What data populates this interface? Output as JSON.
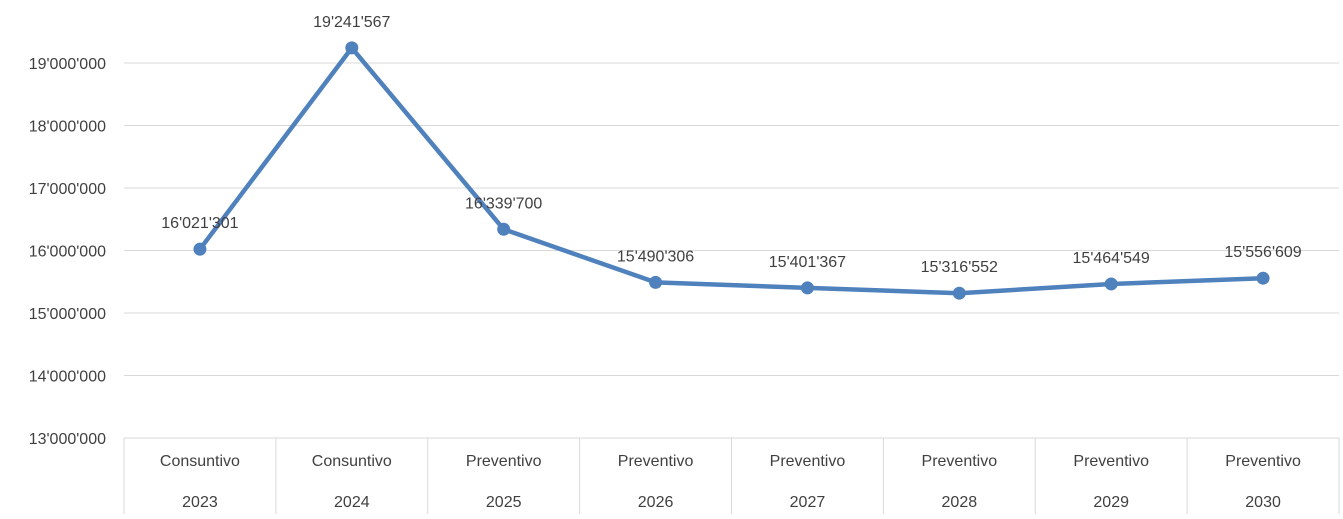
{
  "chart_data": {
    "type": "line",
    "categories": [
      [
        "Consuntivo",
        "2023"
      ],
      [
        "Consuntivo",
        "2024"
      ],
      [
        "Preventivo",
        "2025"
      ],
      [
        "Preventivo",
        "2026"
      ],
      [
        "Preventivo",
        "2027"
      ],
      [
        "Preventivo",
        "2028"
      ],
      [
        "Preventivo",
        "2029"
      ],
      [
        "Preventivo",
        "2030"
      ]
    ],
    "series": [
      {
        "values": [
          16021301,
          19241567,
          16339700,
          15490306,
          15401367,
          15316552,
          15464549,
          15556609
        ],
        "data_labels": [
          "16'021'301",
          "19'241'567",
          "16'339'700",
          "15'490'306",
          "15'401'367",
          "15'316'552",
          "15'464'549",
          "15'556'609"
        ],
        "color": "#4f81bd"
      }
    ],
    "ylim": [
      13000000,
      19000000
    ],
    "yticks": [
      13000000,
      14000000,
      15000000,
      16000000,
      17000000,
      18000000,
      19000000
    ],
    "ytick_labels": [
      "13'000'000",
      "14'000'000",
      "15'000'000",
      "16'000'000",
      "17'000'000",
      "18'000'000",
      "19'000'000"
    ],
    "grid": true,
    "title": "",
    "xlabel": "",
    "ylabel": "",
    "gridline_color": "#d9d9d9"
  }
}
